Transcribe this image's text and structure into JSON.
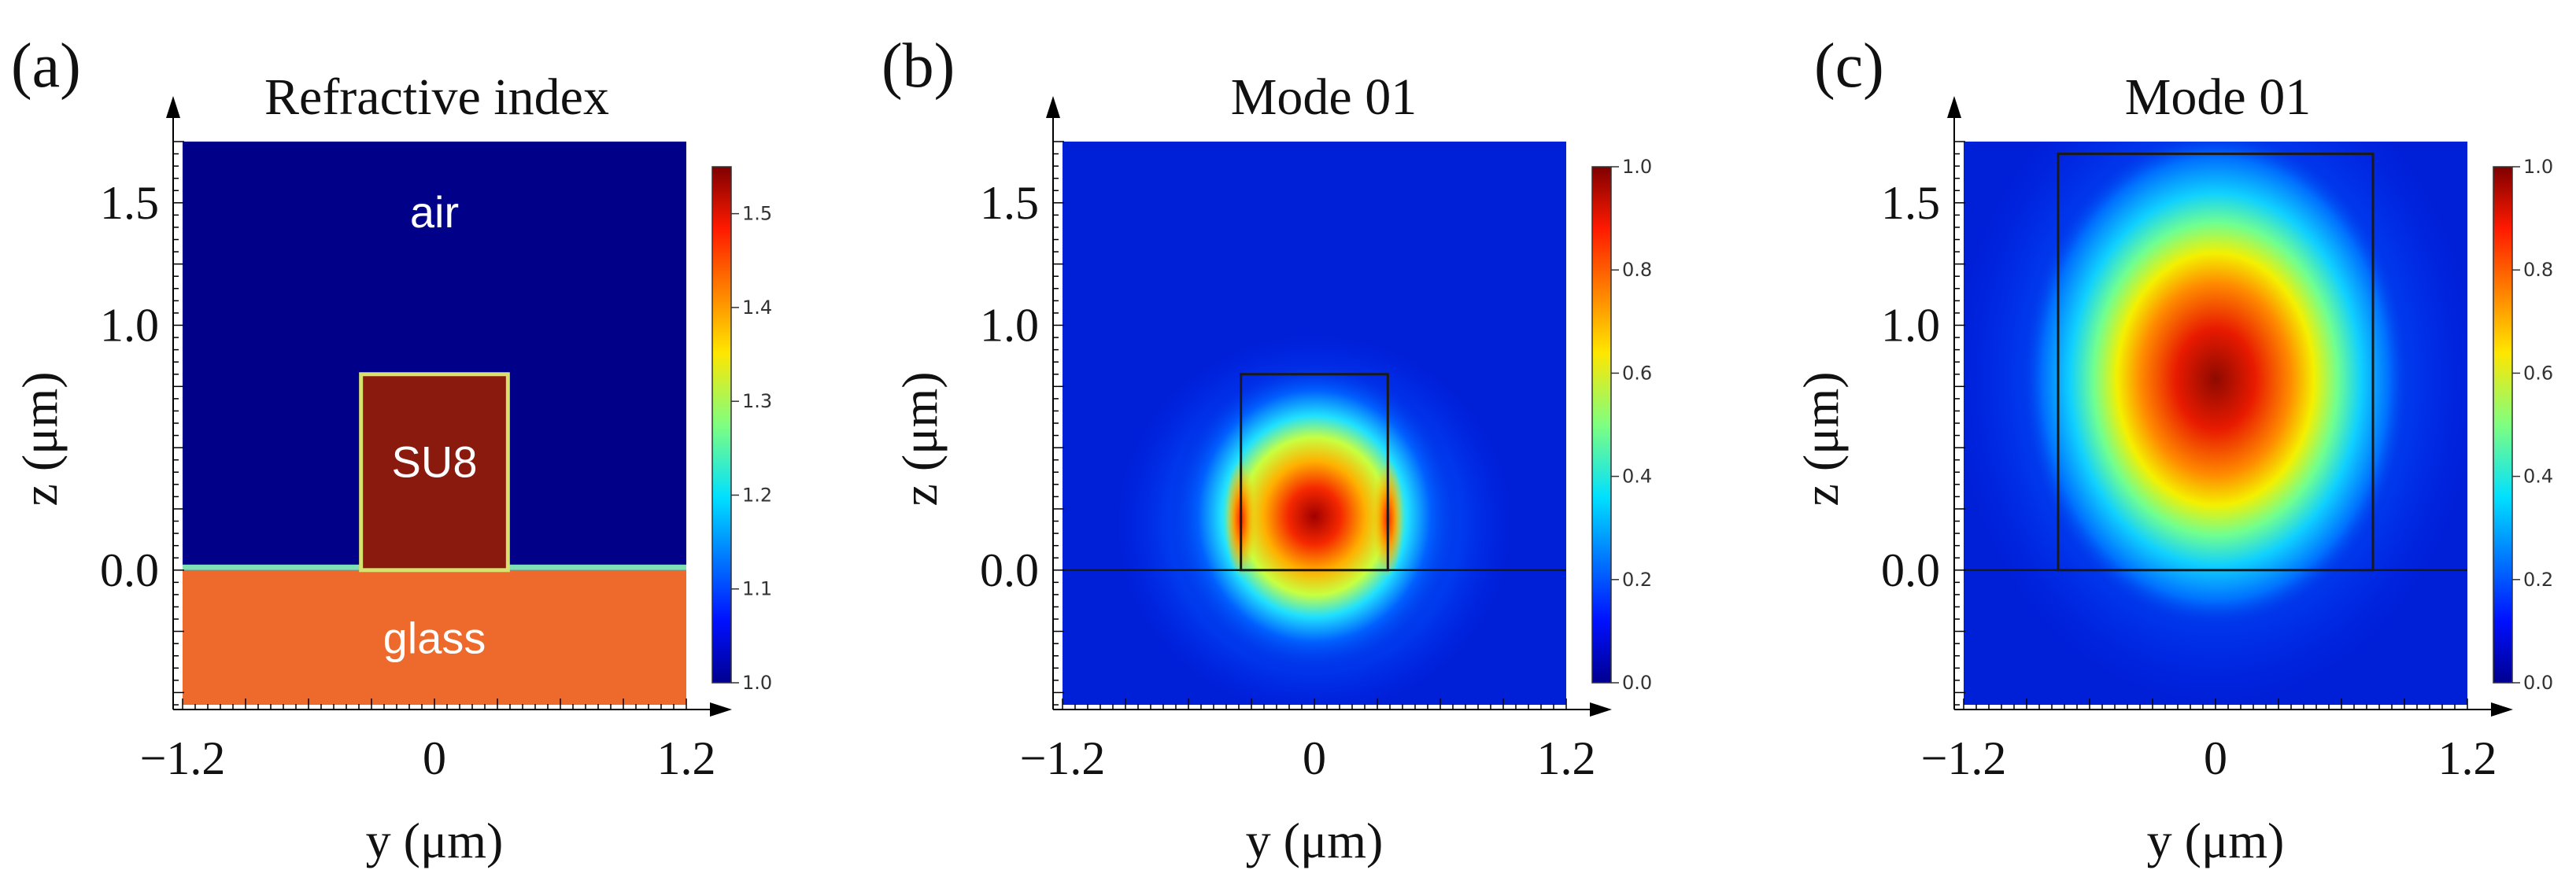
{
  "colors": {
    "background": "#ffffff",
    "jet_dark_blue": "#000080",
    "glass": "#ee6a2c",
    "su8": "#8a1a0e",
    "interface": "#7ee0b4",
    "outline": "#1a1a1a"
  },
  "chart_data": [
    {
      "id": "a",
      "type": "heatmap",
      "panel_label": "(a)",
      "title": "Refractive index",
      "xlabel": "y (μm)",
      "ylabel": "z (μm)",
      "xlim": [
        -1.2,
        1.2
      ],
      "ylim": [
        -0.55,
        1.75
      ],
      "x_ticks": [
        -1.2,
        0,
        1.2
      ],
      "x_tick_labels": [
        "−1.2",
        "0",
        "1.2"
      ],
      "y_ticks": [
        1.5,
        1.0,
        0.0
      ],
      "y_tick_labels": [
        "1.5",
        "1.0",
        "0.0"
      ],
      "colorbar": {
        "range": [
          1.0,
          1.55
        ],
        "ticks": [
          1.0,
          1.1,
          1.2,
          1.3,
          1.4,
          1.5
        ],
        "tick_labels": [
          "1.0",
          "1.1",
          "1.2",
          "1.3",
          "1.4",
          "1.5"
        ]
      },
      "regions": [
        {
          "name": "air",
          "label": "air",
          "index": 1.0,
          "y_range": [
            -1.2,
            1.2
          ],
          "z_range": [
            0.0,
            1.75
          ]
        },
        {
          "name": "SU8",
          "label": "SU8",
          "index": 1.57,
          "y_range": [
            -0.35,
            0.35
          ],
          "z_range": [
            0.0,
            0.8
          ]
        },
        {
          "name": "glass",
          "label": "glass",
          "index": 1.46,
          "y_range": [
            -1.2,
            1.2
          ],
          "z_range": [
            -0.55,
            0.0
          ]
        }
      ]
    },
    {
      "id": "b",
      "type": "heatmap",
      "panel_label": "(b)",
      "title": "Mode 01",
      "xlabel": "y (μm)",
      "ylabel": "z (μm)",
      "xlim": [
        -1.2,
        1.2
      ],
      "ylim": [
        -0.55,
        1.75
      ],
      "x_ticks": [
        -1.2,
        0,
        1.2
      ],
      "x_tick_labels": [
        "−1.2",
        "0",
        "1.2"
      ],
      "y_ticks": [
        1.5,
        1.0,
        0.0
      ],
      "y_tick_labels": [
        "1.5",
        "1.0",
        "0.0"
      ],
      "colorbar": {
        "range": [
          0.0,
          1.0
        ],
        "ticks": [
          0.0,
          0.2,
          0.4,
          0.6,
          0.8,
          1.0
        ],
        "tick_labels": [
          "0.0",
          "0.2",
          "0.4",
          "0.6",
          "0.8",
          "1.0"
        ]
      },
      "waveguide": {
        "y_range": [
          -0.35,
          0.35
        ],
        "z_range": [
          0.0,
          0.8
        ]
      },
      "mode_peak": {
        "y": 0.0,
        "z": 0.22
      }
    },
    {
      "id": "c",
      "type": "heatmap",
      "panel_label": "(c)",
      "title": "Mode 01",
      "xlabel": "y (μm)",
      "ylabel": "z (μm)",
      "xlim": [
        -1.2,
        1.2
      ],
      "ylim": [
        -0.55,
        1.75
      ],
      "x_ticks": [
        -1.2,
        0,
        1.2
      ],
      "x_tick_labels": [
        "−1.2",
        "0",
        "1.2"
      ],
      "y_ticks": [
        1.5,
        1.0,
        0.0
      ],
      "y_tick_labels": [
        "1.5",
        "1.0",
        "0.0"
      ],
      "colorbar": {
        "range": [
          0.0,
          1.0
        ],
        "ticks": [
          0.0,
          0.2,
          0.4,
          0.6,
          0.8,
          1.0
        ],
        "tick_labels": [
          "0.0",
          "0.2",
          "0.4",
          "0.6",
          "0.8",
          "1.0"
        ]
      },
      "waveguide": {
        "y_range": [
          -0.75,
          0.75
        ],
        "z_range": [
          0.0,
          1.7
        ]
      },
      "mode_peak": {
        "y": 0.0,
        "z": 0.78
      }
    }
  ]
}
